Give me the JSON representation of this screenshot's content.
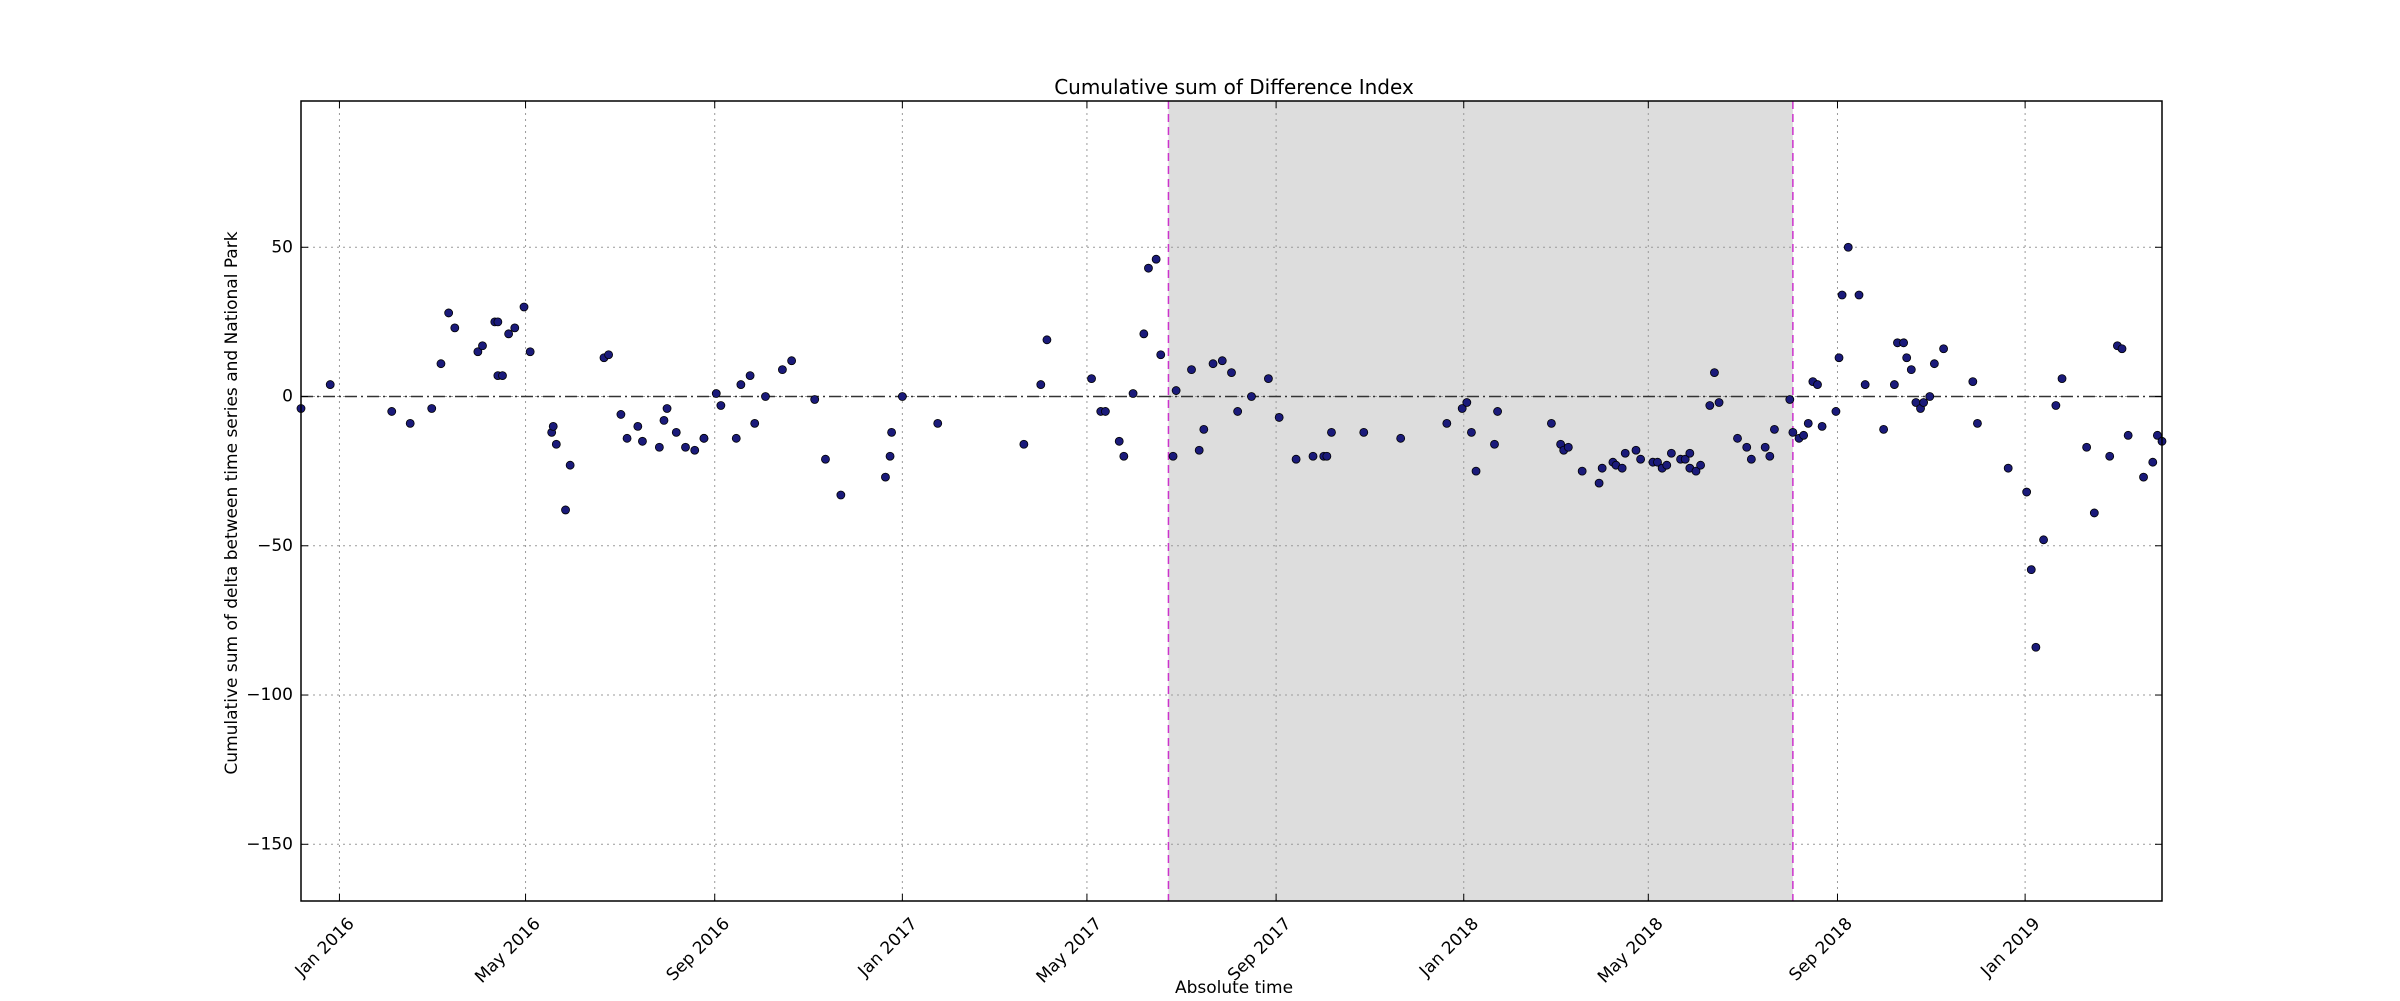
{
  "chart_data": {
    "type": "scatter",
    "title": "Cumulative sum of Difference Index",
    "xlabel": "Absolute time",
    "ylabel": "Cumulative sum of delta between time series and National Park",
    "xlim": [
      "2015-12-07",
      "2019-03-31"
    ],
    "ylim": [
      -169,
      99
    ],
    "x_ticks": [
      {
        "date": "2016-01-01",
        "label": "Jan 2016"
      },
      {
        "date": "2016-05-01",
        "label": "May 2016"
      },
      {
        "date": "2016-09-01",
        "label": "Sep 2016"
      },
      {
        "date": "2017-01-01",
        "label": "Jan 2017"
      },
      {
        "date": "2017-05-01",
        "label": "May 2017"
      },
      {
        "date": "2017-09-01",
        "label": "Sep 2017"
      },
      {
        "date": "2018-01-01",
        "label": "Jan 2018"
      },
      {
        "date": "2018-05-01",
        "label": "May 2018"
      },
      {
        "date": "2018-09-01",
        "label": "Sep 2018"
      },
      {
        "date": "2019-01-01",
        "label": "Jan 2019"
      }
    ],
    "y_ticks": [
      {
        "value": 50,
        "label": "50"
      },
      {
        "value": 0,
        "label": "0"
      },
      {
        "value": -50,
        "label": "−50"
      },
      {
        "value": -100,
        "label": "−100"
      },
      {
        "value": -150,
        "label": "−150"
      }
    ],
    "grid": true,
    "reference_line_y": 0,
    "shaded_region": {
      "start": "2017-06-23",
      "end": "2018-08-03",
      "fill": "#dddddd",
      "edge_color": "#cc33cc"
    },
    "marker_color": "#1a1a7a",
    "points": [
      {
        "x": "2015-12-07",
        "y": -4
      },
      {
        "x": "2015-12-26",
        "y": 4
      },
      {
        "x": "2016-02-04",
        "y": -5
      },
      {
        "x": "2016-02-16",
        "y": -9
      },
      {
        "x": "2016-03-01",
        "y": -4
      },
      {
        "x": "2016-03-07",
        "y": 11
      },
      {
        "x": "2016-03-12",
        "y": 28
      },
      {
        "x": "2016-03-16",
        "y": 23
      },
      {
        "x": "2016-03-31",
        "y": 15
      },
      {
        "x": "2016-04-03",
        "y": 17
      },
      {
        "x": "2016-04-11",
        "y": 25
      },
      {
        "x": "2016-04-13",
        "y": 25
      },
      {
        "x": "2016-04-13",
        "y": 7
      },
      {
        "x": "2016-04-16",
        "y": 7
      },
      {
        "x": "2016-04-20",
        "y": 21
      },
      {
        "x": "2016-04-24",
        "y": 23
      },
      {
        "x": "2016-04-30",
        "y": 30
      },
      {
        "x": "2016-05-04",
        "y": 15
      },
      {
        "x": "2016-05-18",
        "y": -12
      },
      {
        "x": "2016-05-19",
        "y": -10
      },
      {
        "x": "2016-05-21",
        "y": -16
      },
      {
        "x": "2016-05-27",
        "y": -38
      },
      {
        "x": "2016-05-30",
        "y": -23
      },
      {
        "x": "2016-06-21",
        "y": 13
      },
      {
        "x": "2016-06-24",
        "y": 14
      },
      {
        "x": "2016-07-02",
        "y": -6
      },
      {
        "x": "2016-07-06",
        "y": -14
      },
      {
        "x": "2016-07-13",
        "y": -10
      },
      {
        "x": "2016-07-16",
        "y": -15
      },
      {
        "x": "2016-07-27",
        "y": -17
      },
      {
        "x": "2016-07-30",
        "y": -8
      },
      {
        "x": "2016-08-01",
        "y": -4
      },
      {
        "x": "2016-08-07",
        "y": -12
      },
      {
        "x": "2016-08-13",
        "y": -17
      },
      {
        "x": "2016-08-19",
        "y": -18
      },
      {
        "x": "2016-08-25",
        "y": -14
      },
      {
        "x": "2016-08-25",
        "y": -14
      },
      {
        "x": "2016-09-02",
        "y": 1
      },
      {
        "x": "2016-09-05",
        "y": -3
      },
      {
        "x": "2016-09-15",
        "y": -14
      },
      {
        "x": "2016-09-18",
        "y": 4
      },
      {
        "x": "2016-09-24",
        "y": 7
      },
      {
        "x": "2016-09-27",
        "y": -9
      },
      {
        "x": "2016-10-04",
        "y": 0
      },
      {
        "x": "2016-10-15",
        "y": 9
      },
      {
        "x": "2016-10-21",
        "y": 12
      },
      {
        "x": "2016-11-05",
        "y": -1
      },
      {
        "x": "2016-11-12",
        "y": -21
      },
      {
        "x": "2016-11-22",
        "y": -33
      },
      {
        "x": "2016-12-21",
        "y": -27
      },
      {
        "x": "2016-12-24",
        "y": -20
      },
      {
        "x": "2016-12-25",
        "y": -12
      },
      {
        "x": "2017-01-01",
        "y": 0
      },
      {
        "x": "2017-01-24",
        "y": -9
      },
      {
        "x": "2017-03-21",
        "y": -16
      },
      {
        "x": "2017-04-01",
        "y": 4
      },
      {
        "x": "2017-04-05",
        "y": 19
      },
      {
        "x": "2017-05-04",
        "y": 6
      },
      {
        "x": "2017-05-10",
        "y": -5
      },
      {
        "x": "2017-05-13",
        "y": -5
      },
      {
        "x": "2017-05-22",
        "y": -15
      },
      {
        "x": "2017-05-25",
        "y": -20
      },
      {
        "x": "2017-05-31",
        "y": 1
      },
      {
        "x": "2017-06-07",
        "y": 21
      },
      {
        "x": "2017-06-10",
        "y": 43
      },
      {
        "x": "2017-06-15",
        "y": 46
      },
      {
        "x": "2017-06-18",
        "y": 14
      },
      {
        "x": "2017-06-26",
        "y": -20
      },
      {
        "x": "2017-06-28",
        "y": 2
      },
      {
        "x": "2017-07-08",
        "y": 9
      },
      {
        "x": "2017-07-13",
        "y": -18
      },
      {
        "x": "2017-07-16",
        "y": -11
      },
      {
        "x": "2017-07-22",
        "y": 11
      },
      {
        "x": "2017-07-28",
        "y": 12
      },
      {
        "x": "2017-08-03",
        "y": 8
      },
      {
        "x": "2017-08-07",
        "y": -5
      },
      {
        "x": "2017-08-16",
        "y": 0
      },
      {
        "x": "2017-08-27",
        "y": 6
      },
      {
        "x": "2017-09-03",
        "y": -7
      },
      {
        "x": "2017-09-14",
        "y": -21
      },
      {
        "x": "2017-09-25",
        "y": -20
      },
      {
        "x": "2017-10-02",
        "y": -20
      },
      {
        "x": "2017-10-04",
        "y": -20
      },
      {
        "x": "2017-10-07",
        "y": -12
      },
      {
        "x": "2017-10-28",
        "y": -12
      },
      {
        "x": "2017-11-21",
        "y": -14
      },
      {
        "x": "2017-12-21",
        "y": -9
      },
      {
        "x": "2017-12-31",
        "y": -4
      },
      {
        "x": "2018-01-03",
        "y": -2
      },
      {
        "x": "2018-01-06",
        "y": -12
      },
      {
        "x": "2018-01-09",
        "y": -25
      },
      {
        "x": "2018-01-21",
        "y": -16
      },
      {
        "x": "2018-01-23",
        "y": -5
      },
      {
        "x": "2018-02-27",
        "y": -9
      },
      {
        "x": "2018-03-05",
        "y": -16
      },
      {
        "x": "2018-03-07",
        "y": -18
      },
      {
        "x": "2018-03-10",
        "y": -17
      },
      {
        "x": "2018-03-19",
        "y": -25
      },
      {
        "x": "2018-04-01",
        "y": -24
      },
      {
        "x": "2018-03-30",
        "y": -29
      },
      {
        "x": "2018-04-08",
        "y": -22
      },
      {
        "x": "2018-04-10",
        "y": -23
      },
      {
        "x": "2018-04-14",
        "y": -24
      },
      {
        "x": "2018-04-16",
        "y": -19
      },
      {
        "x": "2018-04-23",
        "y": -18
      },
      {
        "x": "2018-04-26",
        "y": -21
      },
      {
        "x": "2018-05-04",
        "y": -22
      },
      {
        "x": "2018-05-07",
        "y": -22
      },
      {
        "x": "2018-05-10",
        "y": -24
      },
      {
        "x": "2018-05-13",
        "y": -23
      },
      {
        "x": "2018-05-16",
        "y": -19
      },
      {
        "x": "2018-05-22",
        "y": -21
      },
      {
        "x": "2018-05-25",
        "y": -21
      },
      {
        "x": "2018-05-28",
        "y": -19
      },
      {
        "x": "2018-05-28",
        "y": -24
      },
      {
        "x": "2018-06-01",
        "y": -25
      },
      {
        "x": "2018-06-04",
        "y": -23
      },
      {
        "x": "2018-06-10",
        "y": -3
      },
      {
        "x": "2018-06-13",
        "y": 8
      },
      {
        "x": "2018-06-16",
        "y": -2
      },
      {
        "x": "2018-06-28",
        "y": -14
      },
      {
        "x": "2018-07-04",
        "y": -17
      },
      {
        "x": "2018-07-07",
        "y": -21
      },
      {
        "x": "2018-07-16",
        "y": -17
      },
      {
        "x": "2018-07-19",
        "y": -20
      },
      {
        "x": "2018-07-22",
        "y": -11
      },
      {
        "x": "2018-08-01",
        "y": -1
      },
      {
        "x": "2018-08-03",
        "y": -12
      },
      {
        "x": "2018-08-07",
        "y": -14
      },
      {
        "x": "2018-08-10",
        "y": -13
      },
      {
        "x": "2018-08-13",
        "y": -9
      },
      {
        "x": "2018-08-16",
        "y": 5
      },
      {
        "x": "2018-08-19",
        "y": 4
      },
      {
        "x": "2018-08-22",
        "y": -10
      },
      {
        "x": "2018-08-31",
        "y": -5
      },
      {
        "x": "2018-09-02",
        "y": 13
      },
      {
        "x": "2018-09-04",
        "y": 34
      },
      {
        "x": "2018-09-08",
        "y": 50
      },
      {
        "x": "2018-09-15",
        "y": 34
      },
      {
        "x": "2018-09-19",
        "y": 4
      },
      {
        "x": "2018-10-01",
        "y": -11
      },
      {
        "x": "2018-10-08",
        "y": 4
      },
      {
        "x": "2018-10-10",
        "y": 18
      },
      {
        "x": "2018-10-14",
        "y": 18
      },
      {
        "x": "2018-10-16",
        "y": 13
      },
      {
        "x": "2018-10-19",
        "y": 9
      },
      {
        "x": "2018-10-22",
        "y": -2
      },
      {
        "x": "2018-10-25",
        "y": -4
      },
      {
        "x": "2018-10-27",
        "y": -2
      },
      {
        "x": "2018-10-31",
        "y": 0
      },
      {
        "x": "2018-11-03",
        "y": 11
      },
      {
        "x": "2018-11-09",
        "y": 16
      },
      {
        "x": "2018-11-28",
        "y": 5
      },
      {
        "x": "2018-12-01",
        "y": -9
      },
      {
        "x": "2018-12-21",
        "y": -24
      },
      {
        "x": "2019-01-02",
        "y": -32
      },
      {
        "x": "2019-01-05",
        "y": -58
      },
      {
        "x": "2019-01-08",
        "y": -84
      },
      {
        "x": "2019-01-13",
        "y": -48
      },
      {
        "x": "2019-01-21",
        "y": -3
      },
      {
        "x": "2019-01-25",
        "y": 6
      },
      {
        "x": "2019-02-10",
        "y": -17
      },
      {
        "x": "2019-02-15",
        "y": -39
      },
      {
        "x": "2019-02-25",
        "y": -20
      },
      {
        "x": "2019-03-02",
        "y": 17
      },
      {
        "x": "2019-03-05",
        "y": 16
      },
      {
        "x": "2019-03-09",
        "y": -13
      },
      {
        "x": "2019-03-19",
        "y": -27
      },
      {
        "x": "2019-03-25",
        "y": -22
      },
      {
        "x": "2019-03-28",
        "y": -13
      },
      {
        "x": "2019-03-31",
        "y": -15
      }
    ]
  }
}
